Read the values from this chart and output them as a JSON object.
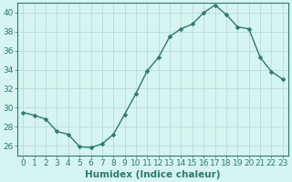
{
  "x": [
    0,
    1,
    2,
    3,
    4,
    5,
    6,
    7,
    8,
    9,
    10,
    11,
    12,
    13,
    14,
    15,
    16,
    17,
    18,
    19,
    20,
    21,
    22,
    23
  ],
  "y": [
    29.5,
    29.2,
    28.8,
    27.5,
    27.2,
    25.9,
    25.8,
    26.2,
    27.2,
    29.3,
    31.5,
    33.9,
    35.3,
    37.5,
    38.3,
    38.8,
    40.0,
    40.8,
    39.8,
    38.5,
    38.3,
    35.3,
    33.8,
    33.0
  ],
  "line_color": "#2d7a6e",
  "marker": "D",
  "marker_size": 2.5,
  "bg_color": "#d6f5f0",
  "grid_color": "#b8dbd7",
  "axis_color": "#2d7a6e",
  "xlabel": "Humidex (Indice chaleur)",
  "xlim": [
    -0.5,
    23.5
  ],
  "ylim": [
    25.0,
    41.0
  ],
  "yticks": [
    26,
    28,
    30,
    32,
    34,
    36,
    38,
    40
  ],
  "xticks": [
    0,
    1,
    2,
    3,
    4,
    5,
    6,
    7,
    8,
    9,
    10,
    11,
    12,
    13,
    14,
    15,
    16,
    17,
    18,
    19,
    20,
    21,
    22,
    23
  ],
  "xlabel_fontsize": 7.5,
  "tick_fontsize": 6.5,
  "linewidth": 1.0,
  "tick_color": "#2d7a6e"
}
